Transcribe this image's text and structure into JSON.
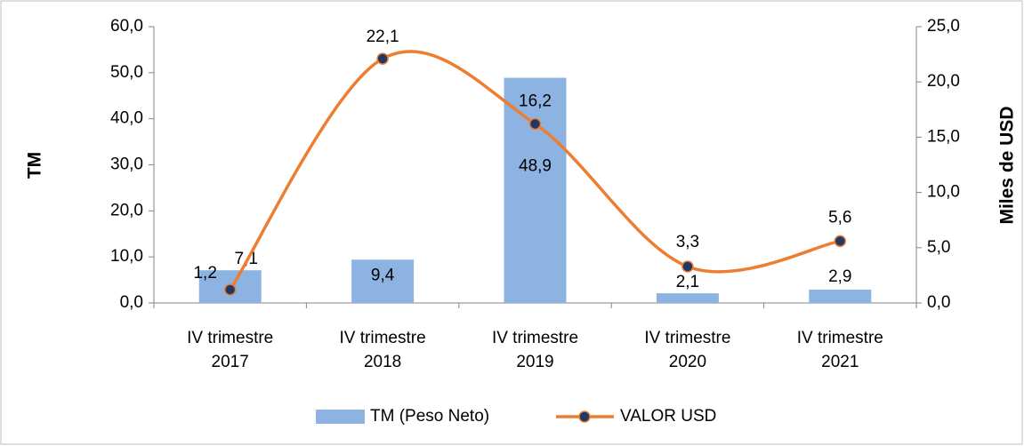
{
  "chart_data": {
    "type": "bar_line",
    "categories": [
      "IV trimestre 2017",
      "IV trimestre 2018",
      "IV trimestre 2019",
      "IV trimestre 2020",
      "IV trimestre 2021"
    ],
    "ylabel": "TM",
    "y2label": "Miles de USD",
    "ylim": [
      0,
      60
    ],
    "yticks": [
      {
        "value": 0,
        "label": "0,0"
      },
      {
        "value": 10,
        "label": "10,0"
      },
      {
        "value": 20,
        "label": "20,0"
      },
      {
        "value": 30,
        "label": "30,0"
      },
      {
        "value": 40,
        "label": "40,0"
      },
      {
        "value": 50,
        "label": "50,0"
      },
      {
        "value": 60,
        "label": "60,0"
      }
    ],
    "y2lim": [
      0,
      25
    ],
    "y2ticks": [
      {
        "value": 0,
        "label": "0,0"
      },
      {
        "value": 5,
        "label": "5,0"
      },
      {
        "value": 10,
        "label": "10,0"
      },
      {
        "value": 15,
        "label": "15,0"
      },
      {
        "value": 20,
        "label": "20,0"
      },
      {
        "value": 25,
        "label": "25,0"
      }
    ],
    "legend": "bottom",
    "series": [
      {
        "name": "TM (Peso Neto)",
        "type": "bar",
        "color": "#8db3e2",
        "values": [
          7.1,
          9.4,
          48.9,
          2.1,
          2.9
        ],
        "value_labels": [
          "7,1",
          "9,4",
          "48,9",
          "2,1",
          "2,9"
        ]
      },
      {
        "name": "VALOR USD",
        "type": "line",
        "axis": "y2",
        "color": "#ed7d31",
        "marker_color": "#1f3864",
        "values": [
          1.2,
          22.1,
          16.2,
          3.3,
          5.6
        ],
        "value_labels": [
          "1,2",
          "22,1",
          "16,2",
          "3,3",
          "5,6"
        ]
      }
    ]
  }
}
